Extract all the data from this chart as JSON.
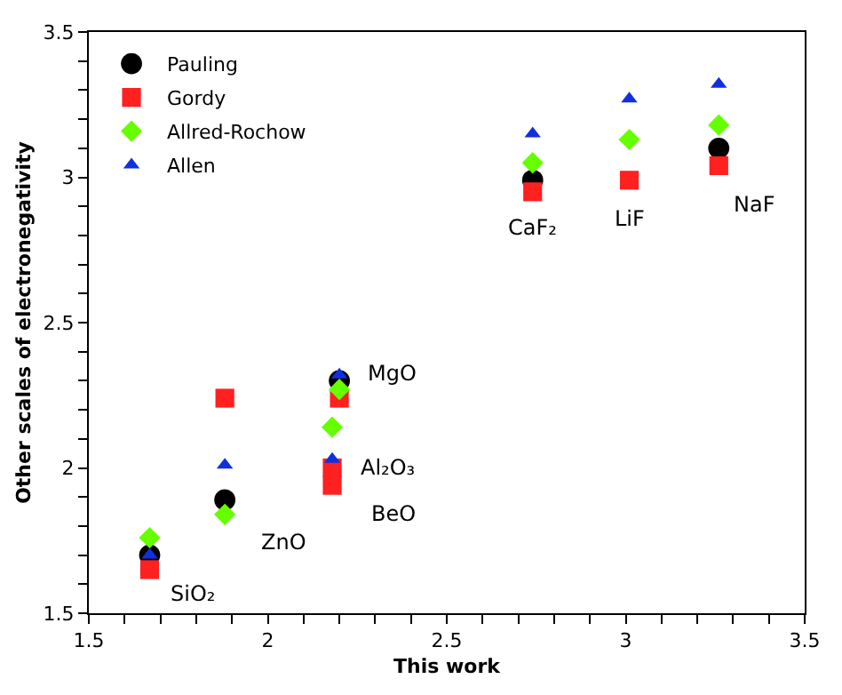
{
  "chart_data": {
    "type": "scatter",
    "xlabel": "This work",
    "ylabel": "Other scales of electronegativity",
    "xlim": [
      1.5,
      3.5
    ],
    "ylim": [
      1.5,
      3.5
    ],
    "xticks": [
      1.5,
      {
        "value": 1.6,
        "label": null
      },
      {
        "value": 1.7,
        "label": null
      },
      {
        "value": 1.8,
        "label": null
      },
      {
        "value": 1.9,
        "label": null
      },
      2,
      {
        "value": 2.1,
        "label": null
      },
      {
        "value": 2.2,
        "label": null
      },
      {
        "value": 2.3,
        "label": null
      },
      {
        "value": 2.4,
        "label": null
      },
      2.5,
      {
        "value": 2.6,
        "label": null
      },
      {
        "value": 2.7,
        "label": null
      },
      {
        "value": 2.8,
        "label": null
      },
      {
        "value": 2.9,
        "label": null
      },
      3,
      {
        "value": 3.1,
        "label": null
      },
      {
        "value": 3.2,
        "label": null
      },
      {
        "value": 3.3,
        "label": null
      },
      {
        "value": 3.4,
        "label": null
      },
      3.5
    ],
    "yticks": [
      1.5,
      {
        "value": 1.6,
        "label": null
      },
      {
        "value": 1.7,
        "label": null
      },
      {
        "value": 1.8,
        "label": null
      },
      {
        "value": 1.9,
        "label": null
      },
      2,
      {
        "value": 2.1,
        "label": null
      },
      {
        "value": 2.2,
        "label": null
      },
      {
        "value": 2.3,
        "label": null
      },
      {
        "value": 2.4,
        "label": null
      },
      2.5,
      {
        "value": 2.6,
        "label": null
      },
      {
        "value": 2.7,
        "label": null
      },
      {
        "value": 2.8,
        "label": null
      },
      {
        "value": 2.9,
        "label": null
      },
      3,
      {
        "value": 3.1,
        "label": null
      },
      {
        "value": 3.2,
        "label": null
      },
      {
        "value": 3.3,
        "label": null
      },
      {
        "value": 3.4,
        "label": null
      },
      3.5
    ],
    "legend": "top left",
    "series": [
      {
        "name": "Pauling",
        "color": "#000000",
        "marker": "circle",
        "x": [
          1.67,
          1.88,
          2.2,
          2.74,
          3.26
        ],
        "values": [
          1.7,
          1.89,
          2.3,
          2.99,
          3.1
        ]
      },
      {
        "name": "Gordy",
        "color": "#ff2020",
        "marker": "square",
        "x": [
          1.67,
          1.88,
          2.18,
          2.18,
          2.2,
          2.74,
          3.01,
          3.26
        ],
        "values": [
          1.65,
          2.24,
          2.0,
          1.94,
          2.24,
          2.95,
          2.99,
          3.04
        ]
      },
      {
        "name": "Allred-Rochow",
        "color": "#66ff00",
        "marker": "diamond",
        "x": [
          1.67,
          1.88,
          2.18,
          2.2,
          2.74,
          3.01,
          3.26
        ],
        "values": [
          1.76,
          1.84,
          2.14,
          2.27,
          3.05,
          3.13,
          3.18
        ]
      },
      {
        "name": "Allen",
        "color": "#1030e0",
        "marker": "triangle",
        "x": [
          1.67,
          1.88,
          2.18,
          2.2,
          2.74,
          3.01,
          3.26
        ],
        "values": [
          1.7,
          2.01,
          2.03,
          2.32,
          3.15,
          3.27,
          3.32
        ]
      }
    ],
    "annotations": [
      {
        "text": "SiO₂",
        "x": 1.67,
        "y": 1.65
      },
      {
        "text": "ZnO",
        "x": 1.88,
        "y": 1.84
      },
      {
        "text": "BeO",
        "x": 2.18,
        "y": 1.94
      },
      {
        "text": "Al₂O₃",
        "x": 2.18,
        "y": 2.0
      },
      {
        "text": "MgO",
        "x": 2.2,
        "y": 2.3
      },
      {
        "text": "CaF₂",
        "x": 2.74,
        "y": 2.95
      },
      {
        "text": "LiF",
        "x": 3.01,
        "y": 2.99
      },
      {
        "text": "NaF",
        "x": 3.26,
        "y": 3.04
      }
    ]
  }
}
